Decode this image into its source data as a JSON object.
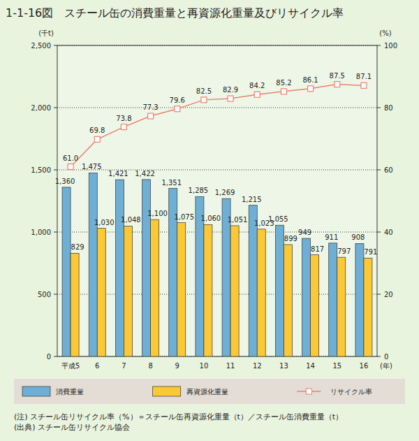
{
  "chart_data": {
    "type": "bar",
    "title": "1-1-16図　スチール缶の消費重量と再資源化重量及びリサイクル率",
    "y_label": "(千t)",
    "y2_label": "(%)",
    "x_label": "(年)",
    "categories": [
      "平成5",
      "6",
      "7",
      "8",
      "9",
      "10",
      "11",
      "12",
      "13",
      "14",
      "15",
      "16"
    ],
    "series": [
      {
        "name": "消費重量",
        "type": "bar",
        "color": "#6eafd6",
        "values": [
          1360,
          1475,
          1421,
          1422,
          1351,
          1285,
          1269,
          1215,
          1055,
          949,
          911,
          908
        ],
        "value_labels": [
          "1,360",
          "1,475",
          "1,421",
          "1,422",
          "1,351",
          "1,285",
          "1,269",
          "1,215",
          "1,055",
          "949",
          "911",
          "908"
        ]
      },
      {
        "name": "再資源化重量",
        "type": "bar",
        "color": "#fcc934",
        "values": [
          829,
          1030,
          1048,
          1100,
          1075,
          1060,
          1051,
          1023,
          899,
          817,
          797,
          791
        ],
        "value_labels": [
          "829",
          "1,030",
          "1,048",
          "1,100",
          "1,075",
          "1,060",
          "1,051",
          "1,023",
          "899",
          "817",
          "797",
          "791"
        ]
      },
      {
        "name": "リサイクル率",
        "type": "line",
        "axis": "y2",
        "color": "#ee7f6f",
        "marker": "square",
        "values": [
          61.0,
          69.8,
          73.8,
          77.3,
          79.6,
          82.5,
          82.9,
          84.2,
          85.2,
          86.1,
          87.5,
          87.1
        ],
        "value_labels": [
          "61.0",
          "69.8",
          "73.8",
          "77.3",
          "79.6",
          "82.5",
          "82.9",
          "84.2",
          "85.2",
          "86.1",
          "87.5",
          "87.1"
        ]
      }
    ],
    "ylim": [
      0,
      2500
    ],
    "yticks": [
      0,
      500,
      {
        "value": 1000,
        "label": "1,000"
      },
      {
        "value": 1500,
        "label": "1,500"
      },
      {
        "value": 2000,
        "label": "2,000"
      },
      {
        "value": 2500,
        "label": "2,500"
      }
    ],
    "y2lim": [
      0,
      100
    ],
    "y2ticks": [
      0,
      20,
      40,
      60,
      80,
      100
    ],
    "grid": true,
    "data_labels": true,
    "legend": "bottom",
    "notes": [
      "(注) スチール缶リサイクル率（%）＝スチール缶再資源化重量（t）／スチール缶消費重量（t）",
      "(出典) スチール缶リサイクル協会"
    ]
  }
}
